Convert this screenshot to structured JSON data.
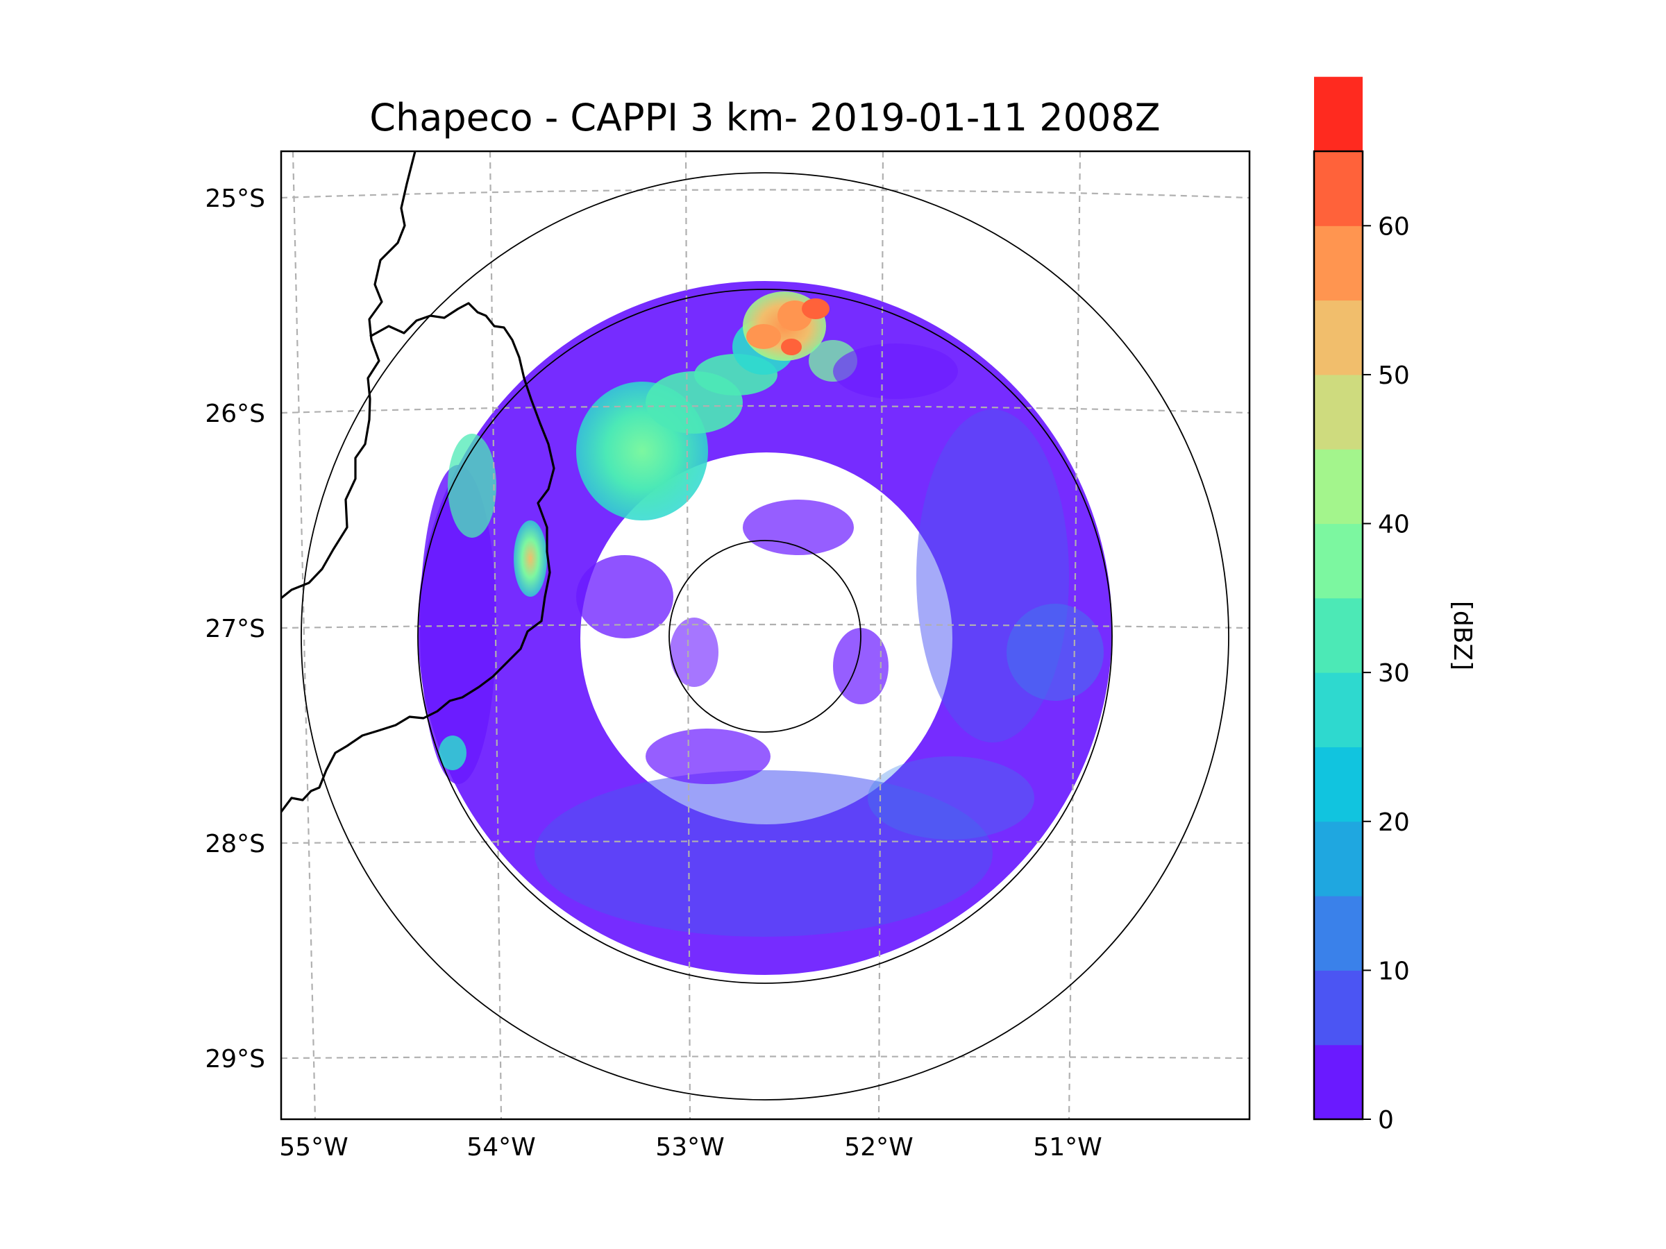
{
  "chart_data": {
    "type": "heatmap",
    "title": "Chapeco - CAPPI 3 km- 2019-01-11 2008Z",
    "map": {
      "lat_ticks": [
        "25°S",
        "26°S",
        "27°S",
        "28°S",
        "29°S"
      ],
      "lon_ticks": [
        "55°W",
        "54°W",
        "53°W",
        "52°W",
        "51°W"
      ],
      "lat_range": [
        -29.3,
        -24.8
      ],
      "lon_range": [
        -55.2,
        -50.0
      ],
      "gridlines": true,
      "radar_center": {
        "lat": -27.0,
        "lon": -52.6
      },
      "range_rings": [
        "inner",
        "middle",
        "outer"
      ]
    },
    "colorbar": {
      "label": "[dBZ]",
      "ticks": [
        0,
        10,
        20,
        30,
        40,
        50,
        60
      ],
      "min": 0,
      "max": 65,
      "step": 5,
      "colors": [
        "#6a1aff",
        "#4b55f3",
        "#3a81ea",
        "#1fa7e0",
        "#11c4df",
        "#2ed9cf",
        "#4ce9b6",
        "#7cf7a0",
        "#a3f58c",
        "#cedb7e",
        "#f1be6c",
        "#ff9550",
        "#ff623a",
        "#ff2a1f"
      ]
    },
    "echo_regions": [
      {
        "name": "northern-convective-line",
        "dbz_max": 55,
        "dbz_core": 50
      },
      {
        "name": "northwest-stratiform",
        "dbz_max": 35
      },
      {
        "name": "western-cell",
        "dbz_max": 50
      },
      {
        "name": "annular-light-precip",
        "dbz_max": 15
      }
    ]
  }
}
